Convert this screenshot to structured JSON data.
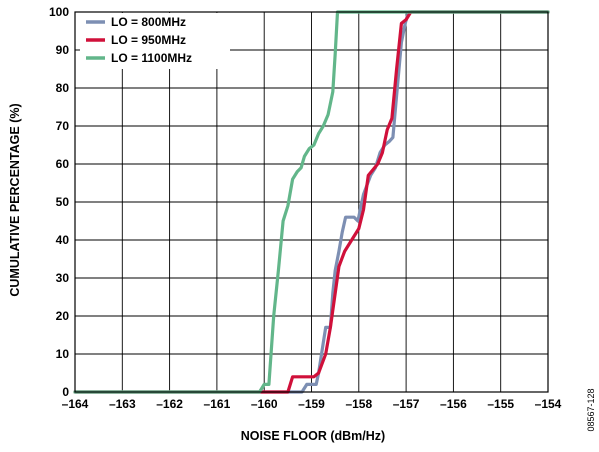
{
  "chart_data": {
    "type": "line",
    "xlabel": "NOISE FLOOR (dBm/Hz)",
    "ylabel": "CUMULATIVE PERCENTAGE (%)",
    "xlim": [
      -164,
      -154
    ],
    "ylim": [
      0,
      100
    ],
    "x_ticks": [
      -164,
      -163,
      -162,
      -161,
      -160,
      -159,
      -158,
      -157,
      -156,
      -155,
      -154
    ],
    "x_tick_labels": [
      "–164",
      "–163",
      "–162",
      "–161",
      "–160",
      "–159",
      "–158",
      "–157",
      "–156",
      "–155",
      "–154"
    ],
    "y_ticks": [
      0,
      10,
      20,
      30,
      40,
      50,
      60,
      70,
      80,
      90,
      100
    ],
    "y_tick_labels": [
      "0",
      "10",
      "20",
      "30",
      "40",
      "50",
      "60",
      "70",
      "80",
      "90",
      "100"
    ],
    "grid": true,
    "legend_position": "top-left",
    "series": [
      {
        "name": "LO = 800MHz",
        "color": "#7d8fb3",
        "points": [
          [
            -164,
            0
          ],
          [
            -159.2,
            0
          ],
          [
            -159.1,
            2
          ],
          [
            -158.9,
            2
          ],
          [
            -158.85,
            5
          ],
          [
            -158.75,
            13
          ],
          [
            -158.7,
            17
          ],
          [
            -158.6,
            17
          ],
          [
            -158.55,
            26
          ],
          [
            -158.5,
            32
          ],
          [
            -158.42,
            37
          ],
          [
            -158.35,
            42
          ],
          [
            -158.28,
            46
          ],
          [
            -158.1,
            46
          ],
          [
            -158.02,
            45
          ],
          [
            -157.9,
            52
          ],
          [
            -157.75,
            57
          ],
          [
            -157.65,
            59
          ],
          [
            -157.55,
            63
          ],
          [
            -157.45,
            65
          ],
          [
            -157.35,
            66
          ],
          [
            -157.28,
            67
          ],
          [
            -157.2,
            78
          ],
          [
            -157.15,
            85
          ],
          [
            -157.1,
            92
          ],
          [
            -157.02,
            97
          ],
          [
            -156.95,
            100
          ],
          [
            -154,
            100
          ]
        ]
      },
      {
        "name": "LO = 950MHz",
        "color": "#d0103a",
        "points": [
          [
            -164,
            0
          ],
          [
            -159.5,
            0
          ],
          [
            -159.4,
            4
          ],
          [
            -158.95,
            4
          ],
          [
            -158.85,
            5
          ],
          [
            -158.7,
            10
          ],
          [
            -158.6,
            17
          ],
          [
            -158.5,
            26
          ],
          [
            -158.42,
            33
          ],
          [
            -158.3,
            37
          ],
          [
            -158.15,
            40
          ],
          [
            -158.0,
            43
          ],
          [
            -157.9,
            48
          ],
          [
            -157.8,
            57
          ],
          [
            -157.6,
            60
          ],
          [
            -157.5,
            63
          ],
          [
            -157.4,
            69
          ],
          [
            -157.3,
            72
          ],
          [
            -157.2,
            85
          ],
          [
            -157.1,
            97
          ],
          [
            -157.0,
            98
          ],
          [
            -156.9,
            100
          ],
          [
            -154,
            100
          ]
        ]
      },
      {
        "name": "LO = 1100MHz",
        "color": "#62b68a",
        "points": [
          [
            -164,
            0
          ],
          [
            -160.1,
            0
          ],
          [
            -160.0,
            2
          ],
          [
            -159.9,
            2
          ],
          [
            -159.8,
            20
          ],
          [
            -159.7,
            32
          ],
          [
            -159.6,
            45
          ],
          [
            -159.5,
            49
          ],
          [
            -159.4,
            56
          ],
          [
            -159.3,
            58
          ],
          [
            -159.22,
            59
          ],
          [
            -159.15,
            62
          ],
          [
            -159.05,
            64
          ],
          [
            -158.95,
            65
          ],
          [
            -158.85,
            68
          ],
          [
            -158.75,
            70
          ],
          [
            -158.65,
            73
          ],
          [
            -158.55,
            79
          ],
          [
            -158.5,
            89
          ],
          [
            -158.45,
            100
          ],
          [
            -154,
            100
          ]
        ]
      }
    ]
  },
  "figure_id": "08567-128"
}
